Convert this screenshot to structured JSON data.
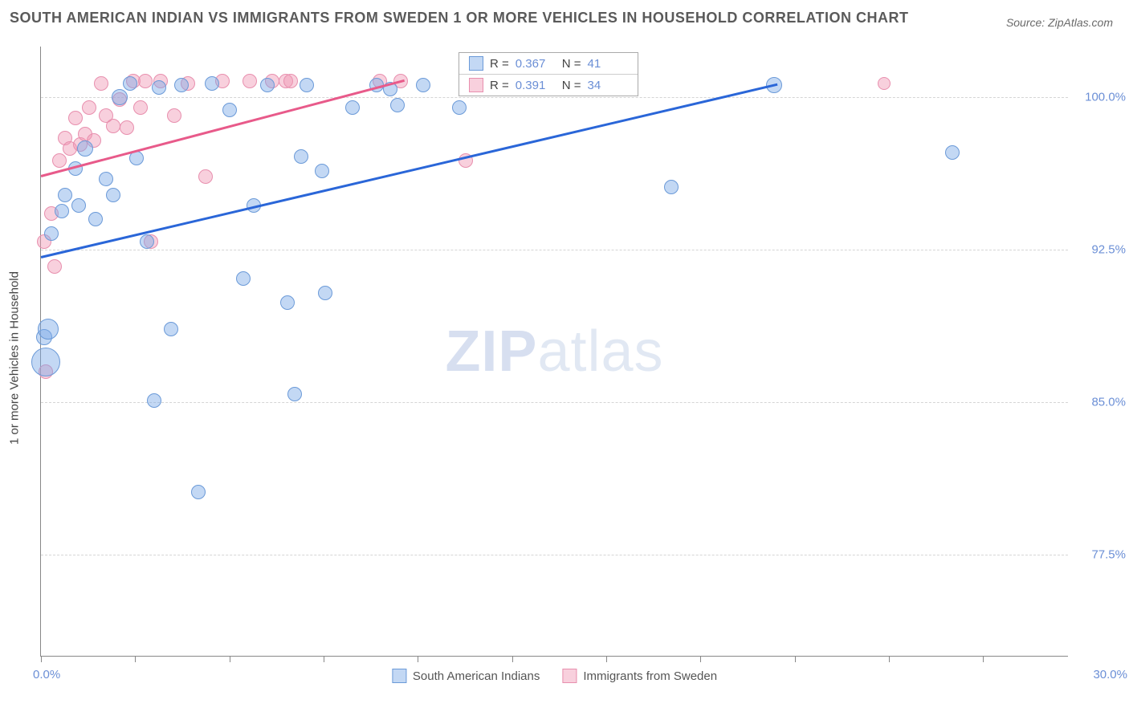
{
  "title": "SOUTH AMERICAN INDIAN VS IMMIGRANTS FROM SWEDEN 1 OR MORE VEHICLES IN HOUSEHOLD CORRELATION CHART",
  "source": "Source: ZipAtlas.com",
  "watermark_a": "ZIP",
  "watermark_b": "atlas",
  "chart": {
    "type": "scatter",
    "xlim": [
      0,
      30
    ],
    "ylim": [
      72.5,
      102.5
    ],
    "xticks_minor": [
      0,
      2.75,
      5.5,
      8.25,
      11,
      13.75,
      16.5,
      19.25,
      22,
      24.75,
      27.5
    ],
    "yticks": [
      77.5,
      85.0,
      92.5,
      100.0
    ],
    "ytick_labels": [
      "77.5%",
      "85.0%",
      "92.5%",
      "100.0%"
    ],
    "xtick_label_left": "0.0%",
    "xtick_label_right": "30.0%",
    "ylabel": "1 or more Vehicles in Household",
    "grid_color": "#d5d5d5",
    "axis_color": "#888888",
    "background": "#ffffff",
    "series": [
      {
        "name": "South American Indians",
        "color_fill": "rgba(122,168,230,0.45)",
        "color_stroke": "#6b9ad8",
        "trend_color": "#2a66d8",
        "R": "0.367",
        "N": "41",
        "trend": {
          "x1": 0,
          "y1": 92.2,
          "x2": 21.5,
          "y2": 100.7
        },
        "points": [
          {
            "x": 0.1,
            "y": 88.2,
            "r": 10
          },
          {
            "x": 0.2,
            "y": 88.6,
            "r": 13
          },
          {
            "x": 0.15,
            "y": 87.0,
            "r": 18
          },
          {
            "x": 0.3,
            "y": 93.3,
            "r": 9
          },
          {
            "x": 0.6,
            "y": 94.4,
            "r": 9
          },
          {
            "x": 0.7,
            "y": 95.2,
            "r": 9
          },
          {
            "x": 1.0,
            "y": 96.5,
            "r": 9
          },
          {
            "x": 1.1,
            "y": 94.7,
            "r": 9
          },
          {
            "x": 1.3,
            "y": 97.5,
            "r": 10
          },
          {
            "x": 1.6,
            "y": 94.0,
            "r": 9
          },
          {
            "x": 1.9,
            "y": 96.0,
            "r": 9
          },
          {
            "x": 2.1,
            "y": 95.2,
            "r": 9
          },
          {
            "x": 2.3,
            "y": 100.0,
            "r": 10
          },
          {
            "x": 2.6,
            "y": 100.7,
            "r": 9
          },
          {
            "x": 2.8,
            "y": 97.0,
            "r": 9
          },
          {
            "x": 3.1,
            "y": 92.9,
            "r": 9
          },
          {
            "x": 3.3,
            "y": 85.1,
            "r": 9
          },
          {
            "x": 3.45,
            "y": 100.5,
            "r": 9
          },
          {
            "x": 3.8,
            "y": 88.6,
            "r": 9
          },
          {
            "x": 4.1,
            "y": 100.6,
            "r": 9
          },
          {
            "x": 4.6,
            "y": 80.6,
            "r": 9
          },
          {
            "x": 5.0,
            "y": 100.7,
            "r": 9
          },
          {
            "x": 5.5,
            "y": 99.4,
            "r": 9
          },
          {
            "x": 5.9,
            "y": 91.1,
            "r": 9
          },
          {
            "x": 6.2,
            "y": 94.7,
            "r": 9
          },
          {
            "x": 6.6,
            "y": 100.6,
            "r": 9
          },
          {
            "x": 7.2,
            "y": 89.9,
            "r": 9
          },
          {
            "x": 7.4,
            "y": 85.4,
            "r": 9
          },
          {
            "x": 7.6,
            "y": 97.1,
            "r": 9
          },
          {
            "x": 7.75,
            "y": 100.6,
            "r": 9
          },
          {
            "x": 8.2,
            "y": 96.4,
            "r": 9
          },
          {
            "x": 8.3,
            "y": 90.4,
            "r": 9
          },
          {
            "x": 9.1,
            "y": 99.5,
            "r": 9
          },
          {
            "x": 9.8,
            "y": 100.6,
            "r": 9
          },
          {
            "x": 10.2,
            "y": 100.4,
            "r": 9
          },
          {
            "x": 10.4,
            "y": 99.6,
            "r": 9
          },
          {
            "x": 11.15,
            "y": 100.6,
            "r": 9
          },
          {
            "x": 12.2,
            "y": 99.5,
            "r": 9
          },
          {
            "x": 18.4,
            "y": 95.6,
            "r": 9
          },
          {
            "x": 21.4,
            "y": 100.6,
            "r": 10
          },
          {
            "x": 26.6,
            "y": 97.3,
            "r": 9
          }
        ]
      },
      {
        "name": "Immigrants from Sweden",
        "color_fill": "rgba(240,150,180,0.45)",
        "color_stroke": "#e88fae",
        "trend_color": "#e85a8a",
        "R": "0.391",
        "N": "34",
        "trend": {
          "x1": 0,
          "y1": 96.2,
          "x2": 10.6,
          "y2": 100.9
        },
        "points": [
          {
            "x": 0.1,
            "y": 92.9,
            "r": 9
          },
          {
            "x": 0.15,
            "y": 86.5,
            "r": 9
          },
          {
            "x": 0.3,
            "y": 94.3,
            "r": 9
          },
          {
            "x": 0.4,
            "y": 91.7,
            "r": 9
          },
          {
            "x": 0.55,
            "y": 96.9,
            "r": 9
          },
          {
            "x": 0.7,
            "y": 98.0,
            "r": 9
          },
          {
            "x": 0.85,
            "y": 97.5,
            "r": 9
          },
          {
            "x": 1.0,
            "y": 99.0,
            "r": 9
          },
          {
            "x": 1.15,
            "y": 97.7,
            "r": 9
          },
          {
            "x": 1.3,
            "y": 98.2,
            "r": 9
          },
          {
            "x": 1.4,
            "y": 99.5,
            "r": 9
          },
          {
            "x": 1.55,
            "y": 97.9,
            "r": 9
          },
          {
            "x": 1.75,
            "y": 100.7,
            "r": 9
          },
          {
            "x": 1.9,
            "y": 99.1,
            "r": 9
          },
          {
            "x": 2.1,
            "y": 98.6,
            "r": 9
          },
          {
            "x": 2.3,
            "y": 99.9,
            "r": 9
          },
          {
            "x": 2.5,
            "y": 98.5,
            "r": 9
          },
          {
            "x": 2.7,
            "y": 100.8,
            "r": 9
          },
          {
            "x": 2.9,
            "y": 99.5,
            "r": 9
          },
          {
            "x": 3.05,
            "y": 100.8,
            "r": 9
          },
          {
            "x": 3.2,
            "y": 92.9,
            "r": 9
          },
          {
            "x": 3.5,
            "y": 100.8,
            "r": 9
          },
          {
            "x": 3.9,
            "y": 99.1,
            "r": 9
          },
          {
            "x": 4.3,
            "y": 100.7,
            "r": 9
          },
          {
            "x": 4.8,
            "y": 96.1,
            "r": 9
          },
          {
            "x": 5.3,
            "y": 100.8,
            "r": 9
          },
          {
            "x": 6.1,
            "y": 100.8,
            "r": 9
          },
          {
            "x": 6.75,
            "y": 100.8,
            "r": 9
          },
          {
            "x": 7.15,
            "y": 100.8,
            "r": 9
          },
          {
            "x": 7.3,
            "y": 100.8,
            "r": 9
          },
          {
            "x": 9.9,
            "y": 100.8,
            "r": 9
          },
          {
            "x": 10.5,
            "y": 100.8,
            "r": 9
          },
          {
            "x": 12.4,
            "y": 96.9,
            "r": 9
          },
          {
            "x": 24.6,
            "y": 100.7,
            "r": 8
          }
        ]
      }
    ]
  },
  "stat_legend": {
    "r_label": "R =",
    "n_label": "N ="
  }
}
